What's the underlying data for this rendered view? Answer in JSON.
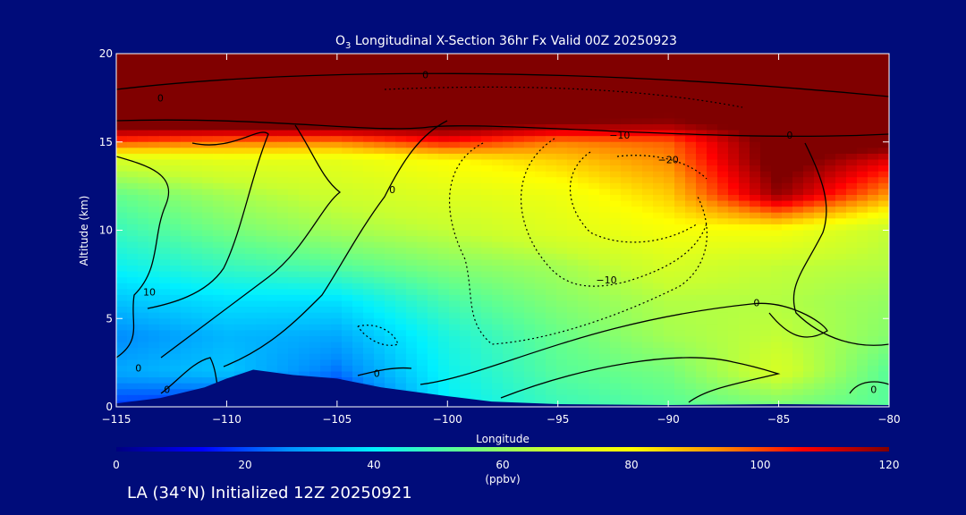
{
  "chart_data": {
    "type": "heatmap",
    "title_prefix": "O",
    "title_subscript": "3",
    "title_rest": " Longitudinal X-Section 36hr  Fx Valid 00Z 20250923",
    "xlabel": "Longitude",
    "ylabel": "Altitude (km)",
    "xlim": [
      -115,
      -80
    ],
    "ylim": [
      0,
      20
    ],
    "x_ticks": [
      -115,
      -110,
      -105,
      -100,
      -95,
      -90,
      -85,
      -80
    ],
    "x_tick_labels": [
      "−115",
      "−110",
      "−105",
      "−100",
      "−95",
      "−90",
      "−85",
      "−80"
    ],
    "y_ticks": [
      0,
      5,
      10,
      15,
      20
    ],
    "y_tick_labels": [
      "0",
      "5",
      "10",
      "15",
      "20"
    ],
    "colorbar": {
      "range": [
        0,
        120
      ],
      "ticks": [
        0,
        20,
        40,
        60,
        80,
        100,
        120
      ],
      "tick_labels": [
        "0",
        "20",
        "40",
        "60",
        "80",
        "100",
        "120"
      ],
      "unit": "(ppbv)",
      "colors": [
        "#000080",
        "#0000ff",
        "#0090ff",
        "#00f0ff",
        "#60ff90",
        "#c8ff30",
        "#ffff00",
        "#ff9000",
        "#ff0000",
        "#800000"
      ]
    },
    "ozone_ppbv_grid": {
      "longitudes": [
        -115,
        -110,
        -105,
        -100,
        -95,
        -90,
        -85,
        -80
      ],
      "altitudes_km": [
        0,
        2,
        4,
        6,
        8,
        10,
        12,
        14,
        15,
        16,
        18,
        20
      ],
      "values": [
        [
          18,
          15,
          12,
          40,
          48,
          52,
          56,
          52
        ],
        [
          30,
          34,
          24,
          42,
          52,
          56,
          70,
          52
        ],
        [
          26,
          32,
          30,
          44,
          54,
          62,
          66,
          58
        ],
        [
          34,
          38,
          38,
          50,
          58,
          64,
          64,
          60
        ],
        [
          42,
          48,
          52,
          58,
          62,
          70,
          66,
          64
        ],
        [
          48,
          56,
          62,
          66,
          72,
          78,
          78,
          66
        ],
        [
          54,
          62,
          68,
          72,
          76,
          86,
          118,
          92
        ],
        [
          70,
          74,
          74,
          80,
          86,
          94,
          125,
          110
        ],
        [
          100,
          96,
          95,
          105,
          95,
          98,
          125,
          125
        ],
        [
          125,
          125,
          125,
          125,
          120,
          118,
          125,
          125
        ],
        [
          125,
          125,
          125,
          125,
          125,
          125,
          125,
          125
        ],
        [
          125,
          125,
          125,
          125,
          125,
          125,
          125,
          125
        ]
      ]
    },
    "terrain_km": {
      "lon": [
        -115,
        -113,
        -111,
        -110,
        -108.8,
        -107,
        -105,
        -103,
        -100,
        -98,
        -95,
        -90,
        -85,
        -80
      ],
      "alt": [
        0.2,
        0.5,
        1.1,
        1.6,
        2.1,
        1.8,
        1.6,
        1.1,
        0.6,
        0.3,
        0.15,
        0.1,
        0.15,
        0.1
      ]
    },
    "contour_labels": [
      {
        "text": "0",
        "lon": -101,
        "alt": 18.8
      },
      {
        "text": "0",
        "lon": -113,
        "alt": 17.5
      },
      {
        "text": "0",
        "lon": -102.5,
        "alt": 12.3
      },
      {
        "text": "0",
        "lon": -84.5,
        "alt": 15.4
      },
      {
        "text": "−10",
        "lon": -92.2,
        "alt": 15.4
      },
      {
        "text": "−20",
        "lon": -90,
        "alt": 14.0
      },
      {
        "text": "−10",
        "lon": -92.8,
        "alt": 7.2
      },
      {
        "text": "10",
        "lon": -113.5,
        "alt": 6.5
      },
      {
        "text": "0",
        "lon": -86,
        "alt": 5.9
      },
      {
        "text": "0",
        "lon": -114,
        "alt": 2.2
      },
      {
        "text": "0",
        "lon": -112.7,
        "alt": 1.0
      },
      {
        "text": "0",
        "lon": -103.2,
        "alt": 1.9
      },
      {
        "text": "0",
        "lon": -80.7,
        "alt": 1.0
      }
    ]
  },
  "footer": {
    "text": "LA (34°N) Initialized 12Z 20250921"
  }
}
